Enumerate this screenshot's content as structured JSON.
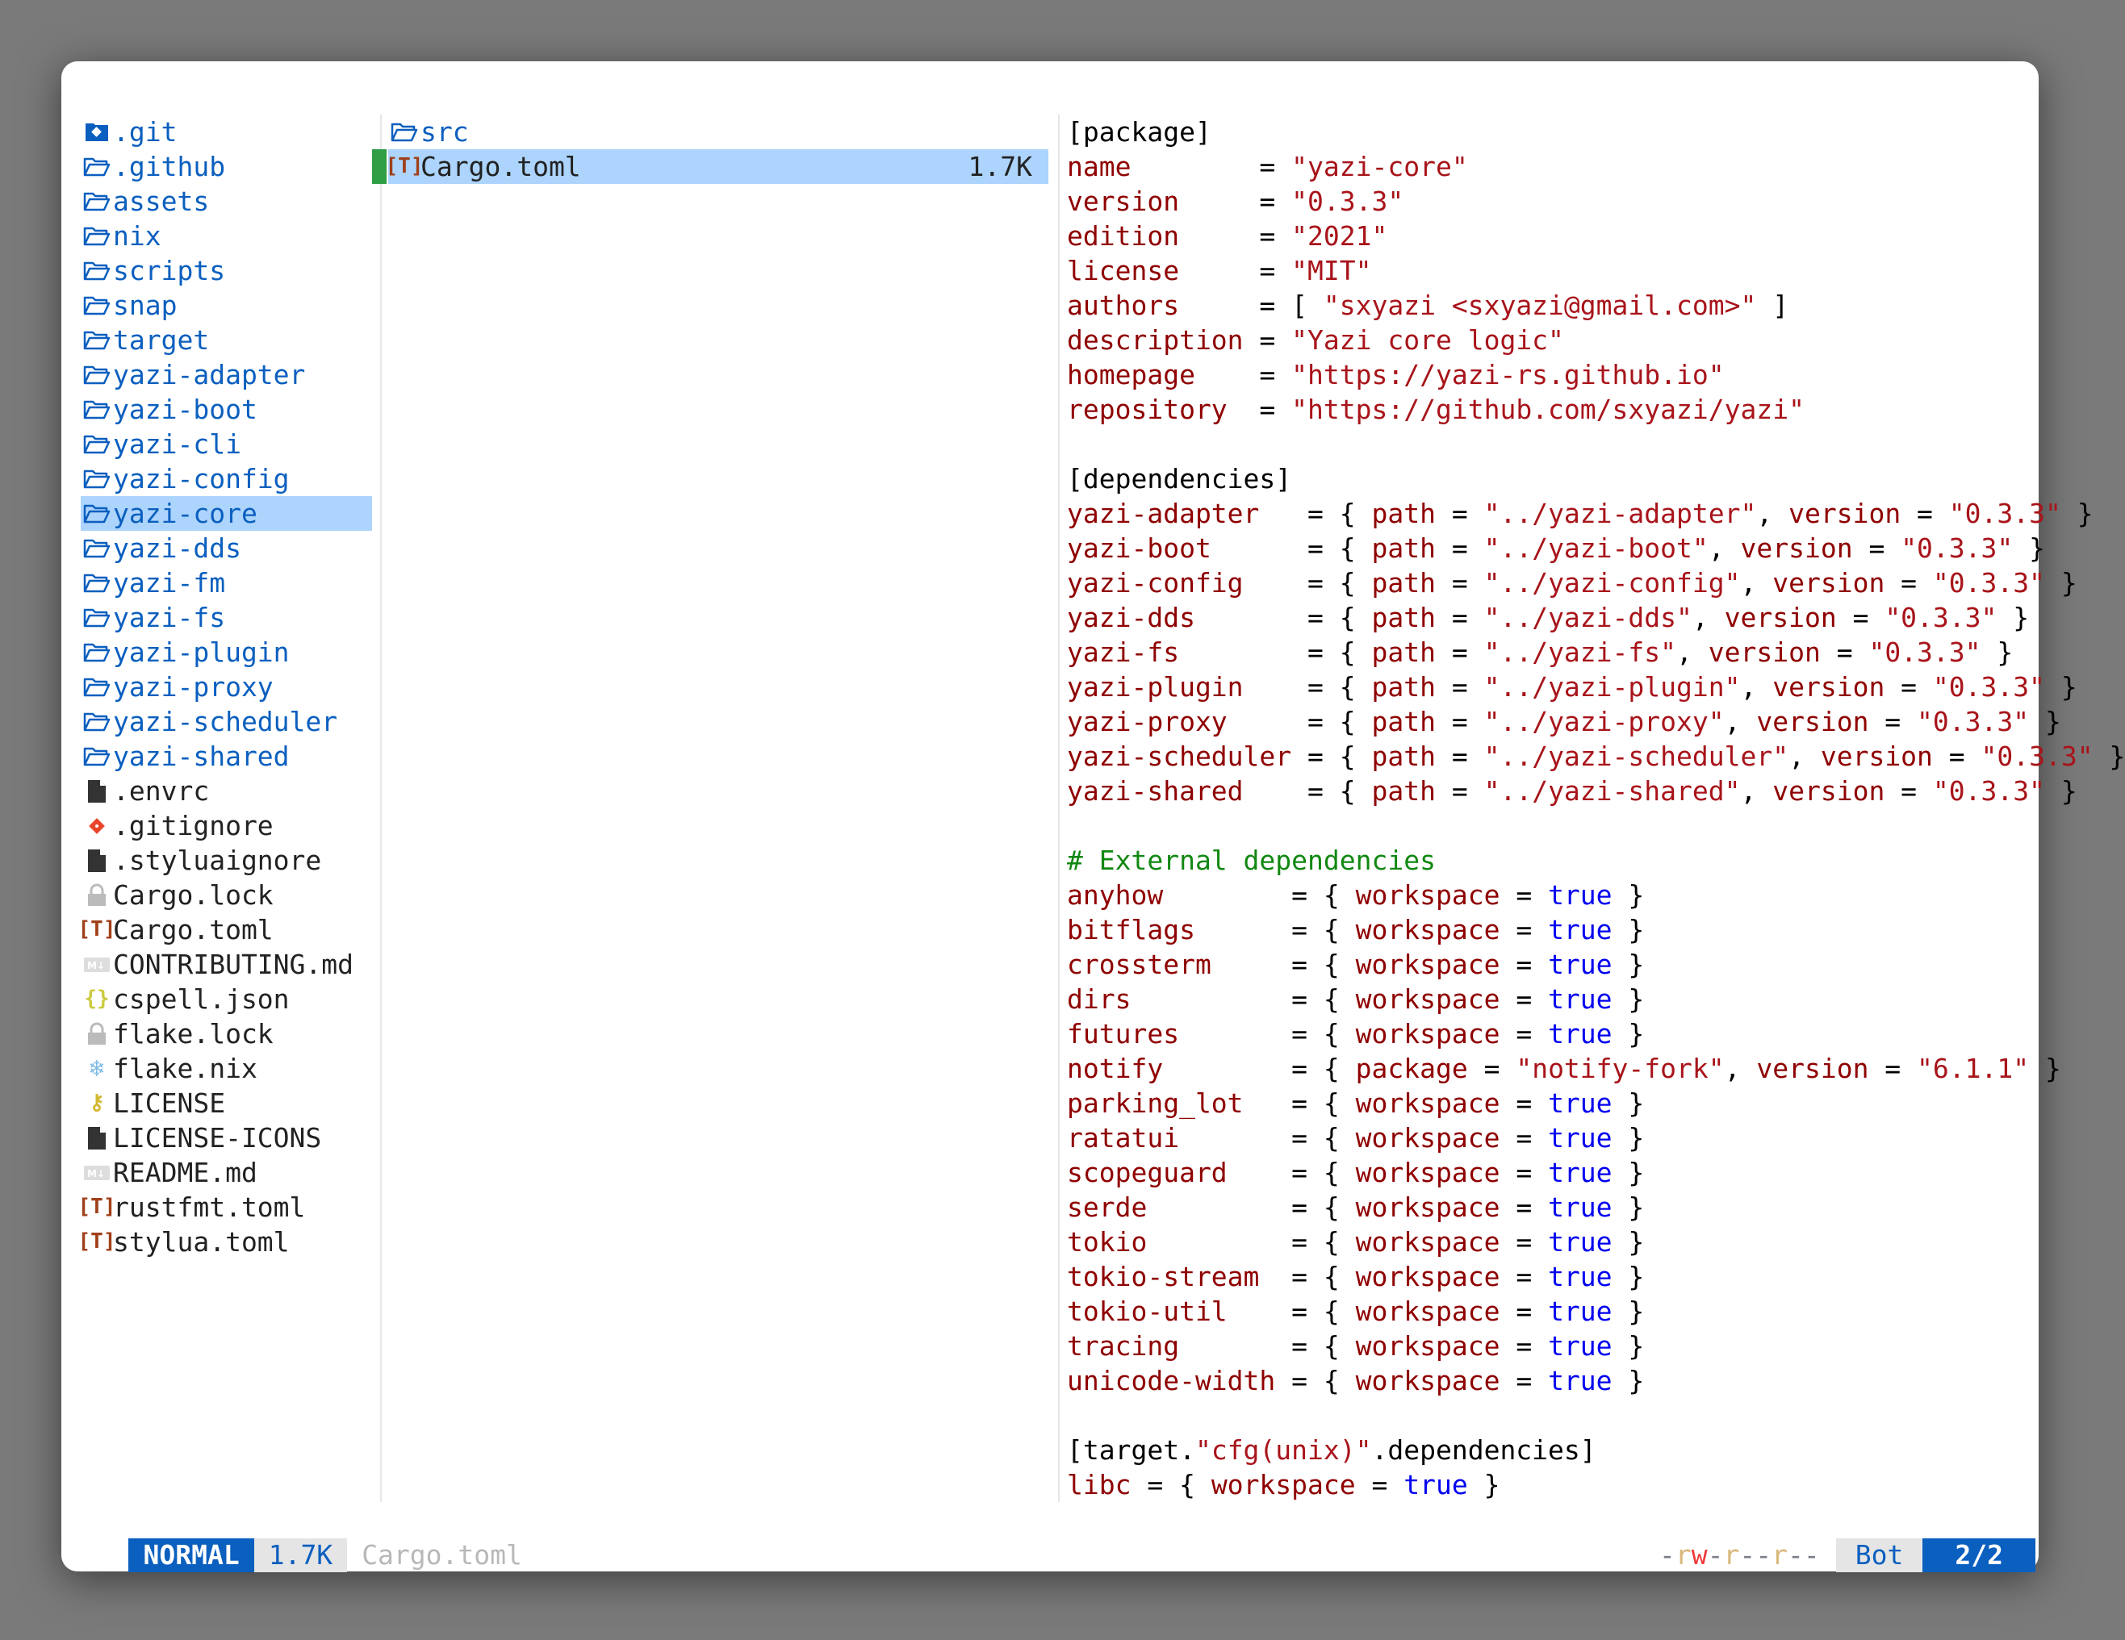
{
  "colors": {
    "accent": "#0b5fbf",
    "selection": "#acd4fc",
    "marker": "#2f9e44"
  },
  "parent": [
    {
      "name": ".git",
      "type": "dir",
      "icon": "git-folder-icon"
    },
    {
      "name": ".github",
      "type": "dir",
      "icon": "folder-icon"
    },
    {
      "name": "assets",
      "type": "dir",
      "icon": "folder-icon"
    },
    {
      "name": "nix",
      "type": "dir",
      "icon": "folder-icon"
    },
    {
      "name": "scripts",
      "type": "dir",
      "icon": "folder-icon"
    },
    {
      "name": "snap",
      "type": "dir",
      "icon": "folder-icon"
    },
    {
      "name": "target",
      "type": "dir",
      "icon": "folder-icon"
    },
    {
      "name": "yazi-adapter",
      "type": "dir",
      "icon": "folder-icon"
    },
    {
      "name": "yazi-boot",
      "type": "dir",
      "icon": "folder-icon"
    },
    {
      "name": "yazi-cli",
      "type": "dir",
      "icon": "folder-icon"
    },
    {
      "name": "yazi-config",
      "type": "dir",
      "icon": "folder-icon"
    },
    {
      "name": "yazi-core",
      "type": "dir",
      "icon": "folder-icon",
      "selected": true
    },
    {
      "name": "yazi-dds",
      "type": "dir",
      "icon": "folder-icon"
    },
    {
      "name": "yazi-fm",
      "type": "dir",
      "icon": "folder-icon"
    },
    {
      "name": "yazi-fs",
      "type": "dir",
      "icon": "folder-icon"
    },
    {
      "name": "yazi-plugin",
      "type": "dir",
      "icon": "folder-icon"
    },
    {
      "name": "yazi-proxy",
      "type": "dir",
      "icon": "folder-icon"
    },
    {
      "name": "yazi-scheduler",
      "type": "dir",
      "icon": "folder-icon"
    },
    {
      "name": "yazi-shared",
      "type": "dir",
      "icon": "folder-icon"
    },
    {
      "name": ".envrc",
      "type": "file",
      "icon": "file-icon"
    },
    {
      "name": ".gitignore",
      "type": "file",
      "icon": "git-icon"
    },
    {
      "name": ".styluaignore",
      "type": "file",
      "icon": "file-icon"
    },
    {
      "name": "Cargo.lock",
      "type": "file",
      "icon": "lock-icon"
    },
    {
      "name": "Cargo.toml",
      "type": "file",
      "icon": "toml-icon"
    },
    {
      "name": "CONTRIBUTING.md",
      "type": "file",
      "icon": "markdown-icon"
    },
    {
      "name": "cspell.json",
      "type": "file",
      "icon": "json-icon"
    },
    {
      "name": "flake.lock",
      "type": "file",
      "icon": "lock-icon"
    },
    {
      "name": "flake.nix",
      "type": "file",
      "icon": "nix-snowflake-icon"
    },
    {
      "name": "LICENSE",
      "type": "file",
      "icon": "license-key-icon"
    },
    {
      "name": "LICENSE-ICONS",
      "type": "file",
      "icon": "file-icon"
    },
    {
      "name": "README.md",
      "type": "file",
      "icon": "markdown-icon"
    },
    {
      "name": "rustfmt.toml",
      "type": "file",
      "icon": "toml-icon"
    },
    {
      "name": "stylua.toml",
      "type": "file",
      "icon": "toml-icon"
    }
  ],
  "current": [
    {
      "name": "src",
      "type": "dir",
      "icon": "folder-icon"
    },
    {
      "name": "Cargo.toml",
      "type": "file",
      "icon": "toml-icon",
      "size": "1.7K",
      "selected": true
    }
  ],
  "preview": [
    [
      [
        "[package]",
        "p"
      ]
    ],
    [
      [
        "name        ",
        "k"
      ],
      [
        "= ",
        "p"
      ],
      [
        "\"yazi-core\"",
        "s"
      ]
    ],
    [
      [
        "version     ",
        "k"
      ],
      [
        "= ",
        "p"
      ],
      [
        "\"0.3.3\"",
        "s"
      ]
    ],
    [
      [
        "edition     ",
        "k"
      ],
      [
        "= ",
        "p"
      ],
      [
        "\"2021\"",
        "s"
      ]
    ],
    [
      [
        "license     ",
        "k"
      ],
      [
        "= ",
        "p"
      ],
      [
        "\"MIT\"",
        "s"
      ]
    ],
    [
      [
        "authors     ",
        "k"
      ],
      [
        "= [ ",
        "p"
      ],
      [
        "\"sxyazi <sxyazi@gmail.com>\"",
        "s"
      ],
      [
        " ]",
        "p"
      ]
    ],
    [
      [
        "description ",
        "k"
      ],
      [
        "= ",
        "p"
      ],
      [
        "\"Yazi core logic\"",
        "s"
      ]
    ],
    [
      [
        "homepage    ",
        "k"
      ],
      [
        "= ",
        "p"
      ],
      [
        "\"https://yazi-rs.github.io\"",
        "s"
      ]
    ],
    [
      [
        "repository  ",
        "k"
      ],
      [
        "= ",
        "p"
      ],
      [
        "\"https://github.com/sxyazi/yazi\"",
        "s"
      ]
    ],
    [],
    [
      [
        "[dependencies]",
        "p"
      ]
    ],
    [
      [
        "yazi-adapter   ",
        "k"
      ],
      [
        "= { ",
        "p"
      ],
      [
        "path",
        "k"
      ],
      [
        " = ",
        "p"
      ],
      [
        "\"../yazi-adapter\"",
        "s"
      ],
      [
        ", ",
        "p"
      ],
      [
        "version",
        "k"
      ],
      [
        " = ",
        "p"
      ],
      [
        "\"0.3.3\"",
        "s"
      ],
      [
        " }",
        "p"
      ]
    ],
    [
      [
        "yazi-boot      ",
        "k"
      ],
      [
        "= { ",
        "p"
      ],
      [
        "path",
        "k"
      ],
      [
        " = ",
        "p"
      ],
      [
        "\"../yazi-boot\"",
        "s"
      ],
      [
        ", ",
        "p"
      ],
      [
        "version",
        "k"
      ],
      [
        " = ",
        "p"
      ],
      [
        "\"0.3.3\"",
        "s"
      ],
      [
        " }",
        "p"
      ]
    ],
    [
      [
        "yazi-config    ",
        "k"
      ],
      [
        "= { ",
        "p"
      ],
      [
        "path",
        "k"
      ],
      [
        " = ",
        "p"
      ],
      [
        "\"../yazi-config\"",
        "s"
      ],
      [
        ", ",
        "p"
      ],
      [
        "version",
        "k"
      ],
      [
        " = ",
        "p"
      ],
      [
        "\"0.3.3\"",
        "s"
      ],
      [
        " }",
        "p"
      ]
    ],
    [
      [
        "yazi-dds       ",
        "k"
      ],
      [
        "= { ",
        "p"
      ],
      [
        "path",
        "k"
      ],
      [
        " = ",
        "p"
      ],
      [
        "\"../yazi-dds\"",
        "s"
      ],
      [
        ", ",
        "p"
      ],
      [
        "version",
        "k"
      ],
      [
        " = ",
        "p"
      ],
      [
        "\"0.3.3\"",
        "s"
      ],
      [
        " }",
        "p"
      ]
    ],
    [
      [
        "yazi-fs        ",
        "k"
      ],
      [
        "= { ",
        "p"
      ],
      [
        "path",
        "k"
      ],
      [
        " = ",
        "p"
      ],
      [
        "\"../yazi-fs\"",
        "s"
      ],
      [
        ", ",
        "p"
      ],
      [
        "version",
        "k"
      ],
      [
        " = ",
        "p"
      ],
      [
        "\"0.3.3\"",
        "s"
      ],
      [
        " }",
        "p"
      ]
    ],
    [
      [
        "yazi-plugin    ",
        "k"
      ],
      [
        "= { ",
        "p"
      ],
      [
        "path",
        "k"
      ],
      [
        " = ",
        "p"
      ],
      [
        "\"../yazi-plugin\"",
        "s"
      ],
      [
        ", ",
        "p"
      ],
      [
        "version",
        "k"
      ],
      [
        " = ",
        "p"
      ],
      [
        "\"0.3.3\"",
        "s"
      ],
      [
        " }",
        "p"
      ]
    ],
    [
      [
        "yazi-proxy     ",
        "k"
      ],
      [
        "= { ",
        "p"
      ],
      [
        "path",
        "k"
      ],
      [
        " = ",
        "p"
      ],
      [
        "\"../yazi-proxy\"",
        "s"
      ],
      [
        ", ",
        "p"
      ],
      [
        "version",
        "k"
      ],
      [
        " = ",
        "p"
      ],
      [
        "\"0.3.3\"",
        "s"
      ],
      [
        " }",
        "p"
      ]
    ],
    [
      [
        "yazi-scheduler ",
        "k"
      ],
      [
        "= { ",
        "p"
      ],
      [
        "path",
        "k"
      ],
      [
        " = ",
        "p"
      ],
      [
        "\"../yazi-scheduler\"",
        "s"
      ],
      [
        ", ",
        "p"
      ],
      [
        "version",
        "k"
      ],
      [
        " = ",
        "p"
      ],
      [
        "\"0.3.3\"",
        "s"
      ],
      [
        " }",
        "p"
      ]
    ],
    [
      [
        "yazi-shared    ",
        "k"
      ],
      [
        "= { ",
        "p"
      ],
      [
        "path",
        "k"
      ],
      [
        " = ",
        "p"
      ],
      [
        "\"../yazi-shared\"",
        "s"
      ],
      [
        ", ",
        "p"
      ],
      [
        "version",
        "k"
      ],
      [
        " = ",
        "p"
      ],
      [
        "\"0.3.3\"",
        "s"
      ],
      [
        " }",
        "p"
      ]
    ],
    [],
    [
      [
        "# External dependencies",
        "c"
      ]
    ],
    [
      [
        "anyhow        ",
        "k"
      ],
      [
        "= { ",
        "p"
      ],
      [
        "workspace",
        "k"
      ],
      [
        " = ",
        "p"
      ],
      [
        "true",
        "b"
      ],
      [
        " }",
        "p"
      ]
    ],
    [
      [
        "bitflags      ",
        "k"
      ],
      [
        "= { ",
        "p"
      ],
      [
        "workspace",
        "k"
      ],
      [
        " = ",
        "p"
      ],
      [
        "true",
        "b"
      ],
      [
        " }",
        "p"
      ]
    ],
    [
      [
        "crossterm     ",
        "k"
      ],
      [
        "= { ",
        "p"
      ],
      [
        "workspace",
        "k"
      ],
      [
        " = ",
        "p"
      ],
      [
        "true",
        "b"
      ],
      [
        " }",
        "p"
      ]
    ],
    [
      [
        "dirs          ",
        "k"
      ],
      [
        "= { ",
        "p"
      ],
      [
        "workspace",
        "k"
      ],
      [
        " = ",
        "p"
      ],
      [
        "true",
        "b"
      ],
      [
        " }",
        "p"
      ]
    ],
    [
      [
        "futures       ",
        "k"
      ],
      [
        "= { ",
        "p"
      ],
      [
        "workspace",
        "k"
      ],
      [
        " = ",
        "p"
      ],
      [
        "true",
        "b"
      ],
      [
        " }",
        "p"
      ]
    ],
    [
      [
        "notify        ",
        "k"
      ],
      [
        "= { ",
        "p"
      ],
      [
        "package",
        "k"
      ],
      [
        " = ",
        "p"
      ],
      [
        "\"notify-fork\"",
        "s"
      ],
      [
        ", ",
        "p"
      ],
      [
        "version",
        "k"
      ],
      [
        " = ",
        "p"
      ],
      [
        "\"6.1.1\"",
        "s"
      ],
      [
        " }",
        "p"
      ]
    ],
    [
      [
        "parking_lot   ",
        "k"
      ],
      [
        "= { ",
        "p"
      ],
      [
        "workspace",
        "k"
      ],
      [
        " = ",
        "p"
      ],
      [
        "true",
        "b"
      ],
      [
        " }",
        "p"
      ]
    ],
    [
      [
        "ratatui       ",
        "k"
      ],
      [
        "= { ",
        "p"
      ],
      [
        "workspace",
        "k"
      ],
      [
        " = ",
        "p"
      ],
      [
        "true",
        "b"
      ],
      [
        " }",
        "p"
      ]
    ],
    [
      [
        "scopeguard    ",
        "k"
      ],
      [
        "= { ",
        "p"
      ],
      [
        "workspace",
        "k"
      ],
      [
        " = ",
        "p"
      ],
      [
        "true",
        "b"
      ],
      [
        " }",
        "p"
      ]
    ],
    [
      [
        "serde         ",
        "k"
      ],
      [
        "= { ",
        "p"
      ],
      [
        "workspace",
        "k"
      ],
      [
        " = ",
        "p"
      ],
      [
        "true",
        "b"
      ],
      [
        " }",
        "p"
      ]
    ],
    [
      [
        "tokio         ",
        "k"
      ],
      [
        "= { ",
        "p"
      ],
      [
        "workspace",
        "k"
      ],
      [
        " = ",
        "p"
      ],
      [
        "true",
        "b"
      ],
      [
        " }",
        "p"
      ]
    ],
    [
      [
        "tokio-stream  ",
        "k"
      ],
      [
        "= { ",
        "p"
      ],
      [
        "workspace",
        "k"
      ],
      [
        " = ",
        "p"
      ],
      [
        "true",
        "b"
      ],
      [
        " }",
        "p"
      ]
    ],
    [
      [
        "tokio-util    ",
        "k"
      ],
      [
        "= { ",
        "p"
      ],
      [
        "workspace",
        "k"
      ],
      [
        " = ",
        "p"
      ],
      [
        "true",
        "b"
      ],
      [
        " }",
        "p"
      ]
    ],
    [
      [
        "tracing       ",
        "k"
      ],
      [
        "= { ",
        "p"
      ],
      [
        "workspace",
        "k"
      ],
      [
        " = ",
        "p"
      ],
      [
        "true",
        "b"
      ],
      [
        " }",
        "p"
      ]
    ],
    [
      [
        "unicode-width ",
        "k"
      ],
      [
        "= { ",
        "p"
      ],
      [
        "workspace",
        "k"
      ],
      [
        " = ",
        "p"
      ],
      [
        "true",
        "b"
      ],
      [
        " }",
        "p"
      ]
    ],
    [],
    [
      [
        "[target.",
        "p"
      ],
      [
        "\"cfg(unix)\"",
        "s"
      ],
      [
        ".dependencies]",
        "p"
      ]
    ],
    [
      [
        "libc",
        "k"
      ],
      [
        " = { ",
        "p"
      ],
      [
        "workspace",
        "k"
      ],
      [
        " = ",
        "p"
      ],
      [
        "true",
        "b"
      ],
      [
        " }",
        "p"
      ]
    ]
  ],
  "status": {
    "mode": "NORMAL",
    "size": "1.7K",
    "filename": "Cargo.toml",
    "permissions": "-rw-r--r--",
    "position": "Bot",
    "progress": "2/2"
  }
}
